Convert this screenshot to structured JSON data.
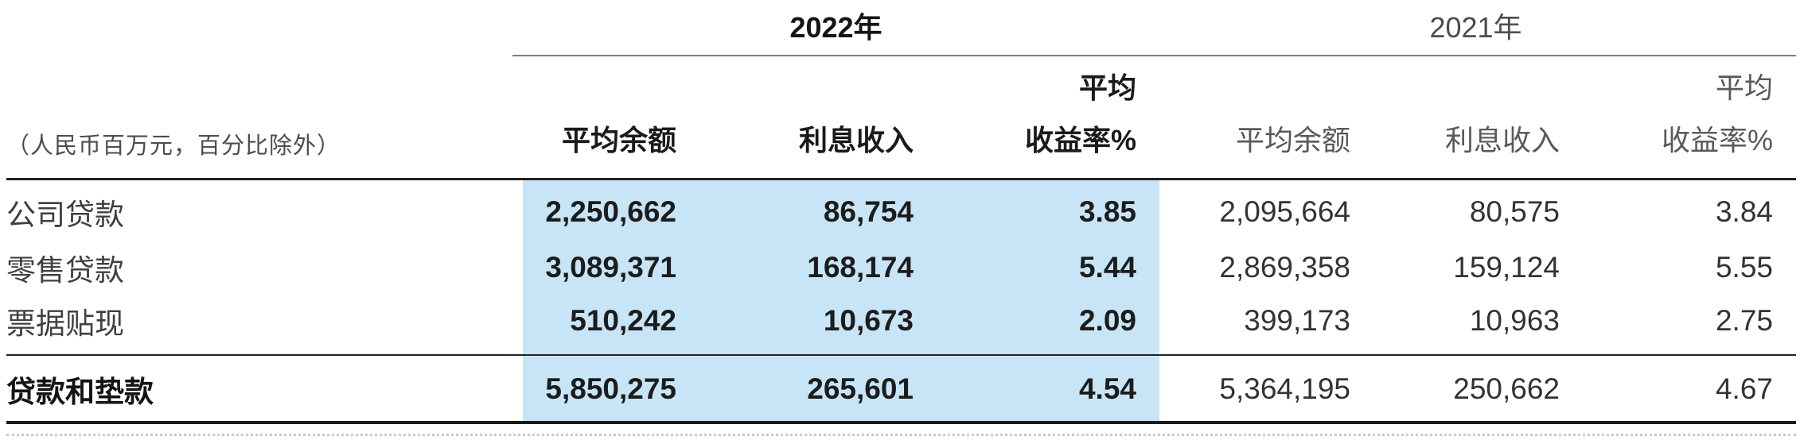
{
  "highlight_color_2022": "#c7e5f6",
  "table": {
    "unit_note": "（人民币百万元，百分比除外）",
    "year_groups": {
      "y2022": "2022年",
      "y2021": "2021年"
    },
    "sub_headers": {
      "avg_balance": "平均余额",
      "interest_income": "利息收入",
      "yield_line1": "平均",
      "yield_line2": "收益率%"
    },
    "rows": [
      {
        "label": "公司贷款",
        "y2022": {
          "avg_balance": "2,250,662",
          "interest_income": "86,754",
          "yield": "3.85"
        },
        "y2021": {
          "avg_balance": "2,095,664",
          "interest_income": "80,575",
          "yield": "3.84"
        }
      },
      {
        "label": "零售贷款",
        "y2022": {
          "avg_balance": "3,089,371",
          "interest_income": "168,174",
          "yield": "5.44"
        },
        "y2021": {
          "avg_balance": "2,869,358",
          "interest_income": "159,124",
          "yield": "5.55"
        }
      },
      {
        "label": "票据贴现",
        "y2022": {
          "avg_balance": "510,242",
          "interest_income": "10,673",
          "yield": "2.09"
        },
        "y2021": {
          "avg_balance": "399,173",
          "interest_income": "10,963",
          "yield": "2.75"
        }
      }
    ],
    "total_row": {
      "label": "贷款和垫款",
      "y2022": {
        "avg_balance": "5,850,275",
        "interest_income": "265,601",
        "yield": "4.54"
      },
      "y2021": {
        "avg_balance": "5,364,195",
        "interest_income": "250,662",
        "yield": "4.67"
      }
    }
  }
}
